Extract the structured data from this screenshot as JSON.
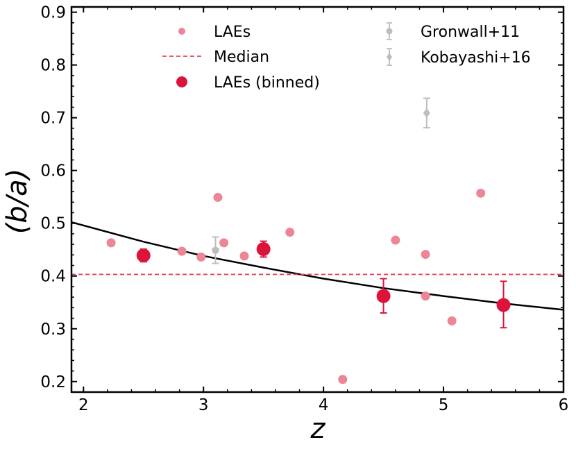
{
  "chart_data": {
    "type": "scatter",
    "xlabel": "z",
    "ylabel": "(b/a)",
    "xlim": [
      1.9,
      6.0
    ],
    "ylim": [
      0.18,
      0.91
    ],
    "xticks": [
      2,
      3,
      4,
      5,
      6
    ],
    "yticks": [
      0.2,
      0.3,
      0.4,
      0.5,
      0.6,
      0.7,
      0.8,
      0.9
    ],
    "xtick_labels": [
      "2",
      "3",
      "4",
      "5",
      "6"
    ],
    "ytick_labels": [
      "0.2",
      "0.3",
      "0.4",
      "0.5",
      "0.6",
      "0.7",
      "0.8",
      "0.9"
    ],
    "grid": false,
    "legend_position": "top",
    "colors": {
      "lae": "#ec8595",
      "binned": "#dc143c",
      "median": "#e8405a",
      "literature": "#bdbdbd",
      "fit": "#000000"
    },
    "series": [
      {
        "name": "LAEs",
        "marker": "circle-small",
        "points": [
          {
            "x": 2.23,
            "y": 0.463
          },
          {
            "x": 2.82,
            "y": 0.447
          },
          {
            "x": 2.98,
            "y": 0.436
          },
          {
            "x": 3.12,
            "y": 0.549
          },
          {
            "x": 3.17,
            "y": 0.463
          },
          {
            "x": 3.34,
            "y": 0.438
          },
          {
            "x": 3.72,
            "y": 0.483
          },
          {
            "x": 4.16,
            "y": 0.204
          },
          {
            "x": 4.6,
            "y": 0.468
          },
          {
            "x": 4.85,
            "y": 0.441
          },
          {
            "x": 4.85,
            "y": 0.362
          },
          {
            "x": 5.07,
            "y": 0.315
          },
          {
            "x": 5.31,
            "y": 0.557
          }
        ]
      },
      {
        "name": "Median",
        "line": "dashed",
        "y": 0.403
      },
      {
        "name": "LAEs (binned)",
        "marker": "circle-large",
        "points": [
          {
            "x": 2.5,
            "y": 0.439,
            "err_low": 0.012,
            "err_high": 0.012
          },
          {
            "x": 3.5,
            "y": 0.451,
            "err_low": 0.015,
            "err_high": 0.015
          },
          {
            "x": 4.5,
            "y": 0.362,
            "err_low": 0.032,
            "err_high": 0.033
          },
          {
            "x": 5.5,
            "y": 0.345,
            "err_low": 0.043,
            "err_high": 0.045
          }
        ]
      },
      {
        "name": "Gronwall+11",
        "marker": "pentagon",
        "points": [
          {
            "x": 3.1,
            "y": 0.449,
            "err_low": 0.025,
            "err_high": 0.025
          }
        ]
      },
      {
        "name": "Kobayashi+16",
        "marker": "diamond",
        "points": [
          {
            "x": 4.86,
            "y": 0.709,
            "err_low": 0.028,
            "err_high": 0.028
          }
        ]
      },
      {
        "name": "Fit",
        "line": "solid",
        "curve": [
          {
            "x": 1.9,
            "y": 0.502
          },
          {
            "x": 2.5,
            "y": 0.465
          },
          {
            "x": 3.0,
            "y": 0.438
          },
          {
            "x": 3.5,
            "y": 0.416
          },
          {
            "x": 4.0,
            "y": 0.395
          },
          {
            "x": 4.5,
            "y": 0.377
          },
          {
            "x": 5.0,
            "y": 0.362
          },
          {
            "x": 5.5,
            "y": 0.348
          },
          {
            "x": 6.0,
            "y": 0.336
          }
        ]
      }
    ],
    "legend": {
      "left": [
        "LAEs",
        "Median",
        "LAEs (binned)"
      ],
      "right": [
        "Gronwall+11",
        "Kobayashi+16"
      ]
    }
  }
}
